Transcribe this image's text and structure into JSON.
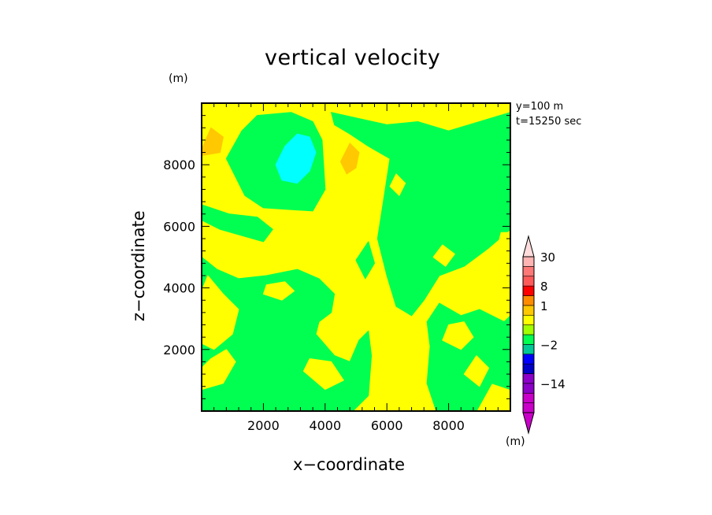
{
  "chart_data": {
    "type": "heatmap",
    "title": "vertical velocity",
    "xlabel": "x−coordinate",
    "ylabel": "z−coordinate",
    "unit_label": "(m)",
    "annotation_lines": [
      "y=100 m",
      "t=15250 sec"
    ],
    "xlim": [
      0,
      10000
    ],
    "ylim": [
      0,
      10000
    ],
    "x_ticks": [
      2000,
      4000,
      6000,
      8000
    ],
    "x_tick_labels": [
      "2000",
      "4000",
      "6000",
      "8000"
    ],
    "y_ticks": [
      2000,
      4000,
      6000,
      8000
    ],
    "y_tick_labels": [
      "2000",
      "4000",
      "6000",
      "8000"
    ],
    "background_level_color": "#ffff00",
    "regions": [
      {
        "level_color": "#00ff50",
        "points": [
          [
            800,
            8200
          ],
          [
            1400,
            7000
          ],
          [
            2000,
            6600
          ],
          [
            3600,
            6500
          ],
          [
            4000,
            7200
          ],
          [
            3900,
            8800
          ],
          [
            3600,
            9400
          ],
          [
            2900,
            9700
          ],
          [
            1800,
            9600
          ],
          [
            1300,
            9100
          ]
        ]
      },
      {
        "level_color": "#00ff50",
        "points": [
          [
            0,
            6200
          ],
          [
            600,
            5900
          ],
          [
            1300,
            5700
          ],
          [
            2000,
            5500
          ],
          [
            2300,
            5900
          ],
          [
            1800,
            6300
          ],
          [
            900,
            6400
          ],
          [
            0,
            6700
          ]
        ]
      },
      {
        "level_color": "#00ff50",
        "points": [
          [
            4200,
            9700
          ],
          [
            5100,
            9500
          ],
          [
            6000,
            9300
          ],
          [
            7000,
            9400
          ],
          [
            8000,
            9100
          ],
          [
            9000,
            9400
          ],
          [
            10000,
            9700
          ],
          [
            10000,
            5900
          ],
          [
            9300,
            5300
          ],
          [
            8500,
            4700
          ],
          [
            7700,
            4400
          ],
          [
            7200,
            3600
          ],
          [
            6800,
            3100
          ],
          [
            6300,
            3400
          ],
          [
            6000,
            4400
          ],
          [
            5700,
            5600
          ],
          [
            5900,
            6900
          ],
          [
            6100,
            8200
          ],
          [
            5400,
            8600
          ],
          [
            4800,
            9000
          ],
          [
            4300,
            9300
          ]
        ]
      },
      {
        "level_color": "#00ff50",
        "points": [
          [
            0,
            5000
          ],
          [
            500,
            4600
          ],
          [
            1200,
            4300
          ],
          [
            2100,
            4400
          ],
          [
            3100,
            4600
          ],
          [
            3800,
            4300
          ],
          [
            4300,
            3800
          ],
          [
            4200,
            3200
          ],
          [
            3800,
            2900
          ],
          [
            3700,
            2500
          ],
          [
            4300,
            1800
          ],
          [
            4800,
            1600
          ],
          [
            5100,
            2300
          ],
          [
            5400,
            2600
          ],
          [
            5500,
            1800
          ],
          [
            5400,
            500
          ],
          [
            4900,
            0
          ],
          [
            0,
            0
          ]
        ]
      },
      {
        "level_color": "#00ff50",
        "points": [
          [
            7700,
            3500
          ],
          [
            8400,
            3100
          ],
          [
            9000,
            3300
          ],
          [
            9800,
            2900
          ],
          [
            10000,
            3100
          ],
          [
            10000,
            700
          ],
          [
            9400,
            900
          ],
          [
            8900,
            0
          ],
          [
            7600,
            0
          ],
          [
            7300,
            900
          ],
          [
            7400,
            2100
          ],
          [
            7300,
            2900
          ]
        ]
      },
      {
        "level_color": "#00ff50",
        "points": [
          [
            2700,
            3300
          ],
          [
            3100,
            3000
          ],
          [
            3500,
            2500
          ],
          [
            3200,
            1900
          ],
          [
            2700,
            2200
          ]
        ]
      },
      {
        "level_color": "#00ff50",
        "points": [
          [
            1200,
            1000
          ],
          [
            2000,
            500
          ],
          [
            2500,
            900
          ],
          [
            2300,
            1700
          ],
          [
            1600,
            2000
          ]
        ]
      },
      {
        "level_color": "#00ff50",
        "points": [
          [
            5000,
            4900
          ],
          [
            5300,
            4300
          ],
          [
            5600,
            4800
          ],
          [
            5400,
            5500
          ]
        ]
      },
      {
        "level_color": "#ffff00",
        "points": [
          [
            200,
            4400
          ],
          [
            700,
            3800
          ],
          [
            1200,
            3300
          ],
          [
            1000,
            2500
          ],
          [
            400,
            2000
          ],
          [
            0,
            2200
          ],
          [
            0,
            3900
          ]
        ]
      },
      {
        "level_color": "#ffff00",
        "points": [
          [
            2000,
            3800
          ],
          [
            2600,
            3600
          ],
          [
            3000,
            3900
          ],
          [
            2700,
            4200
          ],
          [
            2100,
            4100
          ]
        ]
      },
      {
        "level_color": "#ffff00",
        "points": [
          [
            0,
            700
          ],
          [
            700,
            900
          ],
          [
            1100,
            1600
          ],
          [
            800,
            2000
          ],
          [
            300,
            1700
          ],
          [
            0,
            1400
          ]
        ]
      },
      {
        "level_color": "#ffff00",
        "points": [
          [
            7800,
            2300
          ],
          [
            8400,
            2000
          ],
          [
            8800,
            2400
          ],
          [
            8500,
            2900
          ],
          [
            8000,
            2800
          ]
        ]
      },
      {
        "level_color": "#ffff00",
        "points": [
          [
            3300,
            1300
          ],
          [
            4000,
            700
          ],
          [
            4600,
            1000
          ],
          [
            4200,
            1600
          ],
          [
            3500,
            1700
          ]
        ]
      },
      {
        "level_color": "#ffff00",
        "points": [
          [
            8500,
            1200
          ],
          [
            9000,
            800
          ],
          [
            9300,
            1400
          ],
          [
            8900,
            1800
          ]
        ]
      },
      {
        "level_color": "#ffff00",
        "points": [
          [
            9600,
            5400
          ],
          [
            10000,
            5200
          ],
          [
            10000,
            5800
          ],
          [
            9700,
            5800
          ]
        ]
      },
      {
        "level_color": "#ffff00",
        "points": [
          [
            6100,
            7300
          ],
          [
            6400,
            7000
          ],
          [
            6600,
            7400
          ],
          [
            6300,
            7700
          ]
        ]
      },
      {
        "level_color": "#ffff00",
        "points": [
          [
            7500,
            5000
          ],
          [
            7900,
            4700
          ],
          [
            8200,
            5100
          ],
          [
            7800,
            5400
          ]
        ]
      },
      {
        "level_color": "#ffff00",
        "points": [
          [
            8300,
            4300
          ],
          [
            8800,
            4100
          ],
          [
            9100,
            4500
          ],
          [
            8600,
            4700
          ]
        ]
      },
      {
        "level_color": "#00ffff",
        "points": [
          [
            2400,
            8000
          ],
          [
            2700,
            8600
          ],
          [
            3100,
            9000
          ],
          [
            3500,
            8900
          ],
          [
            3700,
            8400
          ],
          [
            3500,
            7800
          ],
          [
            3100,
            7400
          ],
          [
            2600,
            7500
          ]
        ]
      },
      {
        "level_color": "#ffc800",
        "points": [
          [
            4500,
            8100
          ],
          [
            4800,
            8700
          ],
          [
            5100,
            8400
          ],
          [
            5000,
            7900
          ],
          [
            4700,
            7700
          ]
        ]
      },
      {
        "level_color": "#ffc800",
        "points": [
          [
            0,
            8500
          ],
          [
            300,
            9200
          ],
          [
            700,
            8900
          ],
          [
            600,
            8400
          ],
          [
            0,
            8300
          ]
        ]
      }
    ],
    "colorbar": {
      "levels": [
        {
          "color": "#c800c8"
        },
        {
          "color": "#c800c8"
        },
        {
          "color": "#8c00c8"
        },
        {
          "color": "#8c00c8"
        },
        {
          "color": "#0000c8"
        },
        {
          "color": "#0000ff"
        },
        {
          "color": "#00c896"
        },
        {
          "color": "#00ff50"
        },
        {
          "color": "#a0ff00"
        },
        {
          "color": "#ffff00"
        },
        {
          "color": "#ffc800"
        },
        {
          "color": "#ff8c00"
        },
        {
          "color": "#ff0000"
        },
        {
          "color": "#ff5a5a"
        },
        {
          "color": "#ff7878"
        },
        {
          "color": "#ffb4b4"
        }
      ],
      "tick_labels": [
        {
          "label": "30",
          "level_index": 15
        },
        {
          "label": "8",
          "level_index": 12
        },
        {
          "label": "1",
          "level_index": 10
        },
        {
          "label": "−2",
          "level_index": 6
        },
        {
          "label": "−14",
          "level_index": 2
        }
      ]
    }
  }
}
